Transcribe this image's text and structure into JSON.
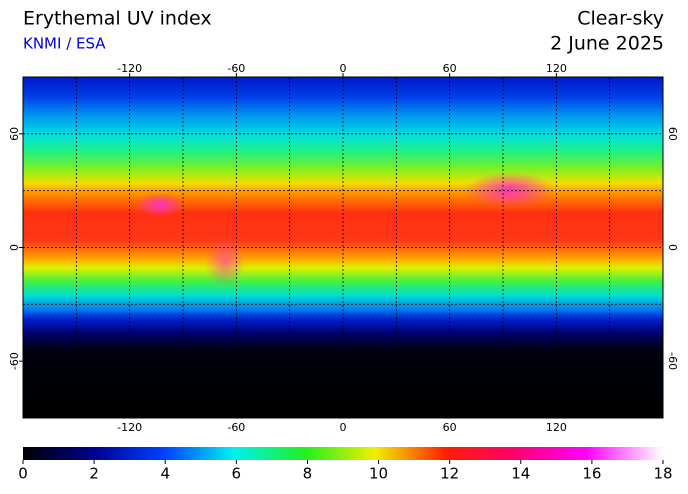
{
  "header": {
    "title": "Erythemal UV index",
    "source": "KNMI / ESA",
    "mode": "Clear-sky",
    "date": "2 June 2025"
  },
  "map": {
    "lon_ticks": [
      -120,
      -60,
      0,
      60,
      120
    ],
    "lat_ticks": [
      60,
      0,
      -60
    ]
  },
  "colorbar": {
    "ticks": [
      0,
      2,
      4,
      6,
      8,
      10,
      12,
      14,
      16,
      18
    ]
  }
}
